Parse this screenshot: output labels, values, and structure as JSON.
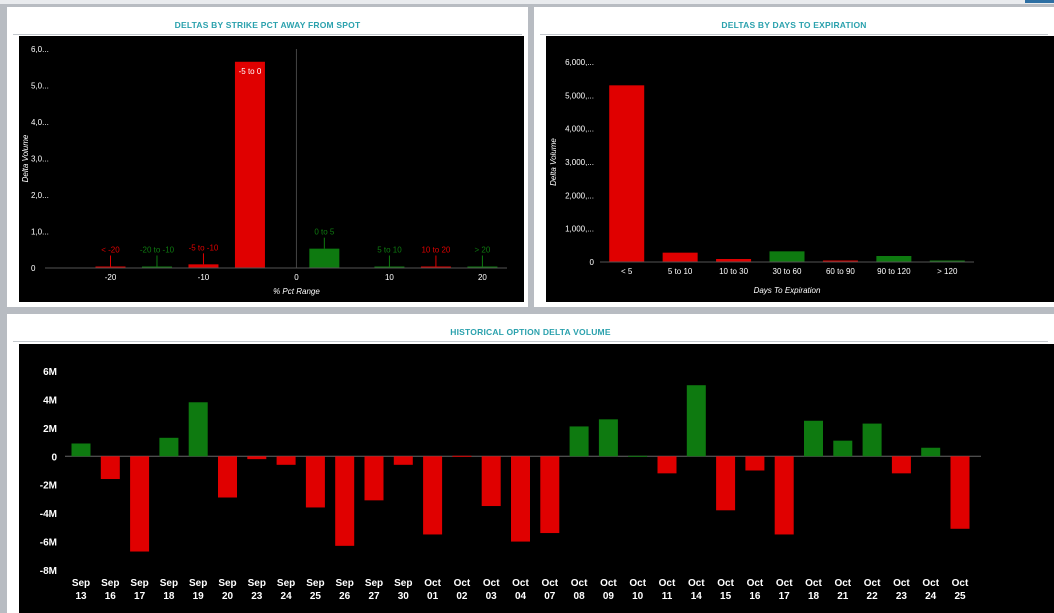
{
  "panels": {
    "strike": {
      "title": "DELTAS BY STRIKE PCT AWAY FROM SPOT"
    },
    "expiry": {
      "title": "DELTAS BY DAYS TO EXPIRATION"
    },
    "history": {
      "title": "HISTORICAL OPTION DELTA VOLUME"
    }
  },
  "colors": {
    "positive": "#0e7a10",
    "negative": "#e00000",
    "axis_text": "#ffffff"
  },
  "chart_data": [
    {
      "id": "strike",
      "type": "bar",
      "title": "DELTAS BY STRIKE PCT AWAY FROM SPOT",
      "xlabel": "% Pct Range",
      "ylabel": "Delta Volume",
      "x_ticks": [
        -20,
        -10,
        0,
        10,
        20
      ],
      "xlim": [
        -25,
        22
      ],
      "y_ticks": [
        0,
        1000,
        2000,
        3000,
        4000,
        5000,
        6000
      ],
      "y_tick_labels": [
        "0",
        "1,0...",
        "2,0...",
        "3,0...",
        "4,0...",
        "5,0...",
        "6,0..."
      ],
      "ylim": [
        0,
        6000
      ],
      "grid": false,
      "bars": [
        {
          "label": "< -20",
          "center": -20,
          "value": 20,
          "sign": "negative"
        },
        {
          "label": "-20 to -10",
          "center": -15,
          "value": 40,
          "sign": "positive"
        },
        {
          "label": "-5 to -10",
          "center": -10,
          "value": 100,
          "sign": "negative"
        },
        {
          "label": "-5 to 0",
          "center": -5,
          "value": 5650,
          "sign": "negative"
        },
        {
          "label": "0 to 5",
          "center": 3,
          "value": 530,
          "sign": "positive"
        },
        {
          "label": "5 to 10",
          "center": 10,
          "value": 40,
          "sign": "positive"
        },
        {
          "label": "10 to 20",
          "center": 15,
          "value": 30,
          "sign": "negative"
        },
        {
          "label": "> 20",
          "center": 20,
          "value": 20,
          "sign": "positive"
        }
      ]
    },
    {
      "id": "expiry",
      "type": "bar",
      "title": "DELTAS BY DAYS TO EXPIRATION",
      "xlabel": "Days To Expiration",
      "ylabel": "Delta Volume",
      "categories": [
        "< 5",
        "5 to 10",
        "10 to 30",
        "30 to 60",
        "60 to 90",
        "90 to 120",
        "> 120"
      ],
      "values": [
        5300,
        280,
        90,
        320,
        20,
        180,
        20
      ],
      "signs": [
        "negative",
        "negative",
        "negative",
        "positive",
        "negative",
        "positive",
        "positive"
      ],
      "y_ticks": [
        0,
        1000,
        2000,
        3000,
        4000,
        5000,
        6000
      ],
      "y_tick_labels": [
        "0",
        "1,000,...",
        "2,000,...",
        "3,000,...",
        "4,000,...",
        "5,000,...",
        "6,000,..."
      ],
      "ylim": [
        0,
        6000
      ],
      "grid": false
    },
    {
      "id": "history",
      "type": "bar",
      "title": "HISTORICAL OPTION DELTA VOLUME",
      "categories": [
        [
          "Sep",
          "13"
        ],
        [
          "Sep",
          "16"
        ],
        [
          "Sep",
          "17"
        ],
        [
          "Sep",
          "18"
        ],
        [
          "Sep",
          "19"
        ],
        [
          "Sep",
          "20"
        ],
        [
          "Sep",
          "23"
        ],
        [
          "Sep",
          "24"
        ],
        [
          "Sep",
          "25"
        ],
        [
          "Sep",
          "26"
        ],
        [
          "Sep",
          "27"
        ],
        [
          "Sep",
          "30"
        ],
        [
          "Oct",
          "01"
        ],
        [
          "Oct",
          "02"
        ],
        [
          "Oct",
          "03"
        ],
        [
          "Oct",
          "04"
        ],
        [
          "Oct",
          "07"
        ],
        [
          "Oct",
          "08"
        ],
        [
          "Oct",
          "09"
        ],
        [
          "Oct",
          "10"
        ],
        [
          "Oct",
          "11"
        ],
        [
          "Oct",
          "14"
        ],
        [
          "Oct",
          "15"
        ],
        [
          "Oct",
          "16"
        ],
        [
          "Oct",
          "17"
        ],
        [
          "Oct",
          "18"
        ],
        [
          "Oct",
          "21"
        ],
        [
          "Oct",
          "22"
        ],
        [
          "Oct",
          "23"
        ],
        [
          "Oct",
          "24"
        ],
        [
          "Oct",
          "25"
        ]
      ],
      "values": [
        0.9,
        -1.6,
        -6.7,
        1.3,
        3.8,
        -2.9,
        -0.2,
        -0.6,
        -3.6,
        -6.3,
        -3.1,
        -0.6,
        -5.5,
        -0.05,
        -3.5,
        -6.0,
        -5.4,
        2.1,
        2.6,
        0.02,
        -1.2,
        5.0,
        -3.8,
        -1.0,
        -5.5,
        2.5,
        1.1,
        2.3,
        -1.2,
        0.6,
        -5.1
      ],
      "unit": "M",
      "y_ticks": [
        -8,
        -6,
        -4,
        -2,
        0,
        2,
        4,
        6
      ],
      "y_tick_labels": [
        "-8M",
        "-6M",
        "-4M",
        "-2M",
        "0",
        "2M",
        "4M",
        "6M"
      ],
      "ylim": [
        -8,
        6
      ],
      "grid": false
    }
  ]
}
